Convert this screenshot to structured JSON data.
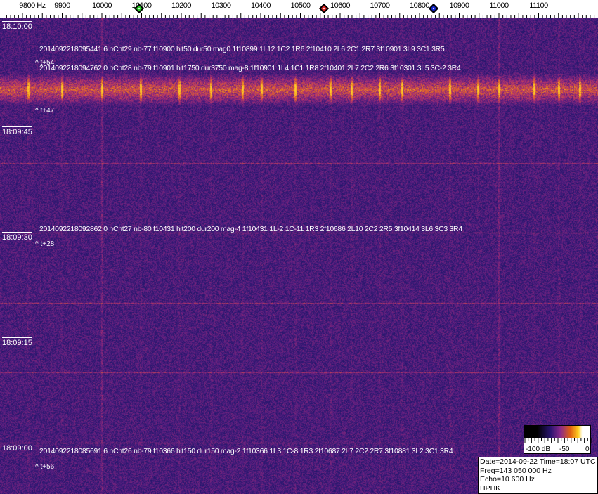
{
  "freq_axis": {
    "labels": [
      "9800 Hz",
      "9900",
      "10000",
      "10100",
      "10200",
      "10300",
      "10400",
      "10500",
      "10600",
      "10700",
      "10800",
      "10900",
      "11000",
      "11100"
    ],
    "values": [
      9800,
      9900,
      10000,
      10100,
      10200,
      10300,
      10400,
      10500,
      10600,
      10700,
      10800,
      10900,
      11000,
      11100
    ],
    "markers": [
      {
        "name": "green",
        "freq": 10096,
        "color": "#22cc22"
      },
      {
        "name": "red",
        "freq": 10561,
        "color": "#dd2222"
      },
      {
        "name": "blue",
        "freq": 10837,
        "color": "#1122cc"
      }
    ]
  },
  "time_labels": [
    "18:10:00",
    "18:09:45",
    "18:09:30",
    "18:09:15",
    "18:09:00"
  ],
  "detections": [
    "2014092218095441 6 hCnt29 nb-77 f10900 hit50 dur50 mag0 1f10899 1L12 1C2 1R6 2f10410 2L6 2C1 2R7 3f10901 3L9 3C1 3R5",
    "2014092218094762 0 hCnt28 nb-79 f10901 hit1750 dur3750 mag-8 1f10901 1L4 1C1 1R8 2f10401 2L7 2C2 2R6 3f10301 3L5 3C-2 3R4",
    "2014092218092862 0 hCnt27 nb-80 f10431 hit200 dur200 mag-4 1f10431 1L-2 1C-11 1R3 2f10686 2L10 2C2 2R5 3f10414 3L6 3C3 3R4",
    "2014092218085691 6 hCnt26 nb-79 f10366 hit150 dur150 mag-2 1f10366 1L3 1C-8 1R3 2f10687 2L7 2C2 2R7 3f10881 3L2 3C1 3R4"
  ],
  "annotations": [
    "^ t+54",
    "^ t+47",
    "^ t+28",
    "^ t+56"
  ],
  "colorbar": {
    "labels": [
      "-100 dB",
      "-50",
      "0"
    ]
  },
  "info": {
    "date": "Date=2014-09-22 Time=18:07 UTC",
    "freq": "Freq=143 050 000 Hz",
    "echo": "Echo=10 600 Hz",
    "station": "HPHK"
  },
  "colors": {
    "background": "#1e166a",
    "line": "#8a2a7a",
    "hot": "#ffb020"
  }
}
